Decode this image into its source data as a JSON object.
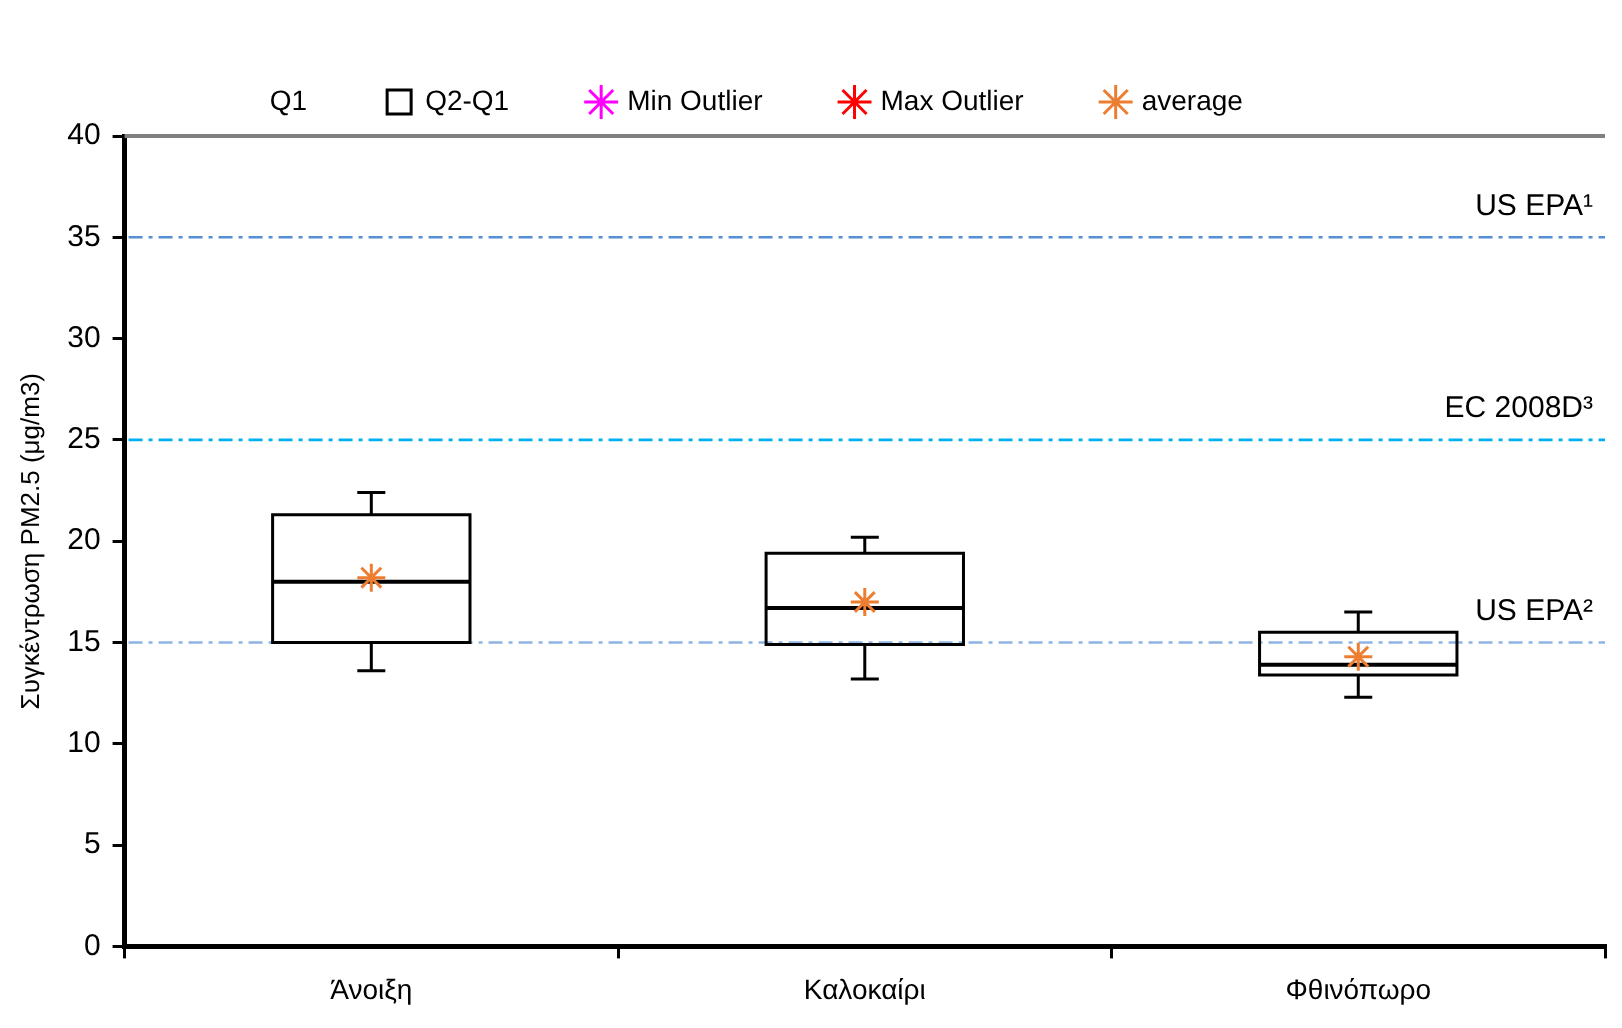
{
  "chart_data": {
    "type": "box",
    "ylabel": "Συγκέντρωση PM2.5 (μg/m3)",
    "categories": [
      "Άνοιξη",
      "Καλοκαίρι",
      "Φθινόπωρο"
    ],
    "legend_title": "Q1",
    "series": [
      {
        "name": "Q2-Q1",
        "color": "#000000",
        "boxes": [
          {
            "low": 13.6,
            "q1": 15.0,
            "median": 18.0,
            "q3": 21.3,
            "high": 22.4
          },
          {
            "low": 13.2,
            "q1": 14.9,
            "median": 16.7,
            "q3": 19.4,
            "high": 20.2
          },
          {
            "low": 12.3,
            "q1": 13.4,
            "median": 13.9,
            "q3": 15.5,
            "high": 16.5
          }
        ]
      },
      {
        "type": "scatter",
        "name": "Min Outlier",
        "color": "#ff00ff",
        "values": [
          null,
          null,
          null
        ]
      },
      {
        "type": "scatter",
        "name": "Max Outlier",
        "color": "#ff0000",
        "values": [
          null,
          null,
          null
        ]
      },
      {
        "type": "scatter",
        "name": "average",
        "color": "#ed7d31",
        "values": [
          18.2,
          17.0,
          14.3
        ]
      }
    ],
    "ylim": [
      0,
      40
    ],
    "yticks": [
      0,
      5,
      10,
      15,
      20,
      25,
      30,
      35,
      40
    ],
    "ref_lines": [
      {
        "axis": "y",
        "value": 35,
        "label": "US EPA¹",
        "color": "#558ed5",
        "line_style": "dashdot"
      },
      {
        "axis": "y",
        "value": 25,
        "label": "EC 2008D³",
        "color": "#00b0f0",
        "line_style": "dashdot"
      },
      {
        "axis": "y",
        "value": 15,
        "label": "US EPA²",
        "color": "#8eb4e3",
        "line_style": "dashdot"
      }
    ],
    "grid": false,
    "legend": "top",
    "marker": "cross"
  }
}
